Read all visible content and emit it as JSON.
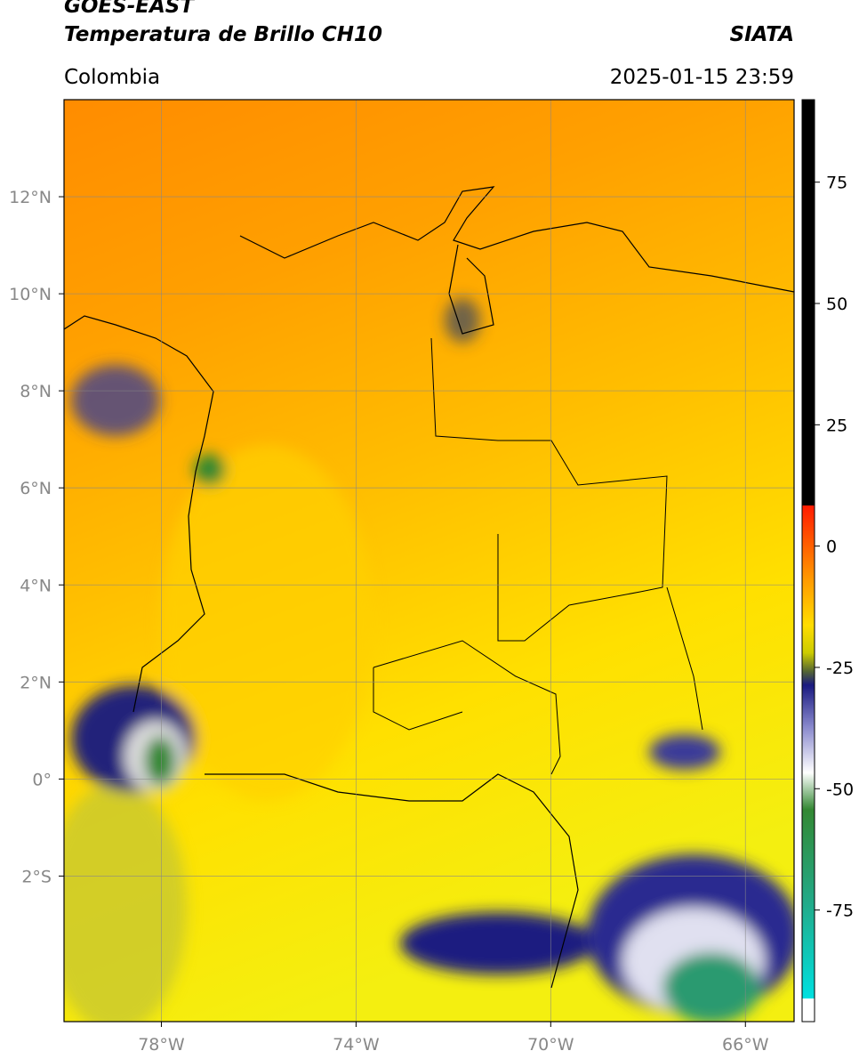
{
  "header": {
    "satellite": "GOES-EAST",
    "product": "Temperatura de Brillo CH10",
    "region": "Colombia",
    "source": "SIATA",
    "datetime": "2025-01-15 23:59"
  },
  "map": {
    "xlim": [
      -80,
      -65
    ],
    "ylim": [
      -5,
      14
    ],
    "xticks": [
      {
        "value": -78,
        "label": "78°W"
      },
      {
        "value": -74,
        "label": "74°W"
      },
      {
        "value": -70,
        "label": "70°W"
      },
      {
        "value": -66,
        "label": "66°W"
      }
    ],
    "yticks": [
      {
        "value": 12,
        "label": "12°N"
      },
      {
        "value": 10,
        "label": "10°N"
      },
      {
        "value": 8,
        "label": "8°N"
      },
      {
        "value": 6,
        "label": "6°N"
      },
      {
        "value": 4,
        "label": "4°N"
      },
      {
        "value": 2,
        "label": "2°N"
      },
      {
        "value": 0,
        "label": "0°"
      },
      {
        "value": -2,
        "label": "2°S"
      }
    ],
    "grid": true
  },
  "colorbar": {
    "lim": [
      -98,
      92
    ],
    "ticks": [
      75,
      50,
      25,
      0,
      -25,
      -50,
      -75
    ]
  }
}
